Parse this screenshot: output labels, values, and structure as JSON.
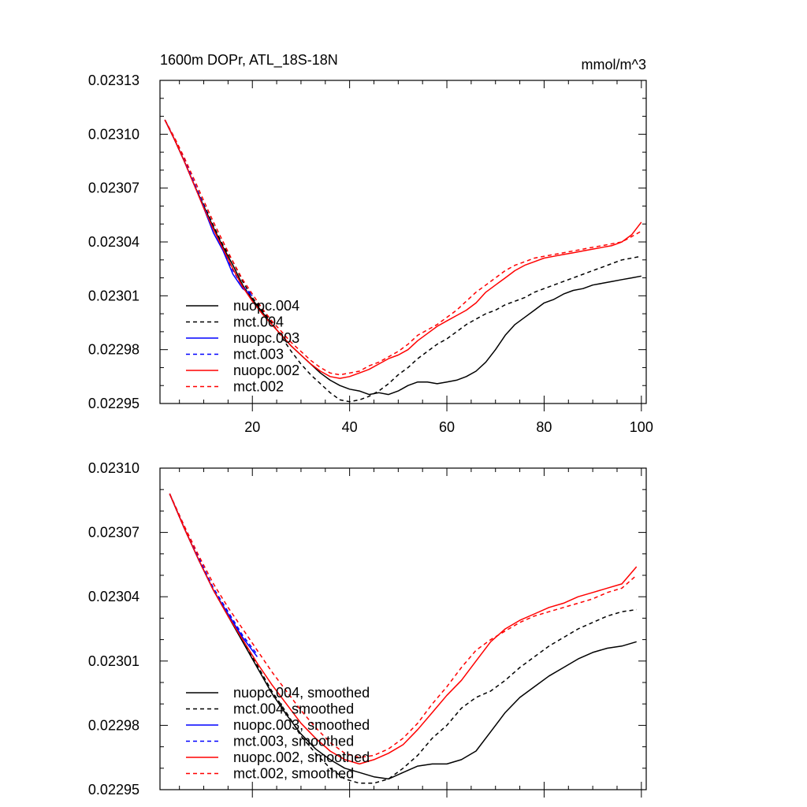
{
  "figure": {
    "title": "1600m DOPr, ATL_18S-18N",
    "units": "mmol/m^3"
  },
  "colors": {
    "nuopc_004": "#000000",
    "mct_004": "#000000",
    "nuopc_003": "#0000ff",
    "mct_003": "#0000ff",
    "nuopc_002": "#ff0000",
    "mct_002": "#ff0000"
  },
  "chart_data": [
    {
      "type": "line",
      "title": "1600m DOPr, ATL_18S-18N",
      "units": "mmol/m^3",
      "xlim": [
        1,
        101
      ],
      "ylim": [
        0.02295,
        0.02313
      ],
      "x_ticks": [
        20,
        40,
        60,
        80,
        100
      ],
      "x_tick_labels": [
        "20",
        "40",
        "60",
        "80",
        "100"
      ],
      "y_ticks": [
        0.02295,
        0.02298,
        0.02301,
        0.02304,
        0.02307,
        0.0231,
        0.02313
      ],
      "y_tick_labels": [
        "0.02295",
        "0.02298",
        "0.02301",
        "0.02304",
        "0.02307",
        "0.02310",
        "0.02313"
      ],
      "legend": "bottom-left",
      "series": [
        {
          "name": "nuopc.004",
          "style": "solid",
          "color": "#000000",
          "x": [
            2,
            4,
            6,
            8,
            10,
            12,
            14,
            16,
            18,
            20,
            22,
            24,
            26,
            28,
            30,
            32,
            34,
            36,
            38,
            40,
            42,
            44,
            46,
            48,
            50,
            52,
            54,
            56,
            58,
            60,
            62,
            64,
            66,
            68,
            70,
            72,
            74,
            76,
            78,
            80,
            82,
            84,
            86,
            88,
            90,
            92,
            94,
            96,
            98,
            100
          ],
          "y": [
            0.023108,
            0.023097,
            0.023085,
            0.023072,
            0.02306,
            0.023048,
            0.023037,
            0.023027,
            0.023016,
            0.023008,
            0.023001,
            0.022994,
            0.022988,
            0.022982,
            0.022977,
            0.022972,
            0.022967,
            0.022963,
            0.02296,
            0.022958,
            0.022957,
            0.022955,
            0.022956,
            0.022955,
            0.022957,
            0.02296,
            0.022962,
            0.022962,
            0.022961,
            0.022962,
            0.022963,
            0.022965,
            0.022968,
            0.022973,
            0.02298,
            0.022988,
            0.022994,
            0.022998,
            0.023002,
            0.023006,
            0.023008,
            0.023011,
            0.023013,
            0.023014,
            0.023016,
            0.023017,
            0.023018,
            0.023019,
            0.02302,
            0.023021
          ]
        },
        {
          "name": "mct.004",
          "style": "dashed",
          "color": "#000000",
          "x": [
            2,
            4,
            6,
            8,
            10,
            12,
            14,
            16,
            18,
            20,
            22,
            24,
            26,
            28,
            30,
            32,
            34,
            36,
            38,
            40,
            42,
            44,
            46,
            48,
            50,
            52,
            54,
            56,
            58,
            60,
            62,
            64,
            66,
            68,
            70,
            72,
            74,
            76,
            78,
            80,
            82,
            84,
            86,
            88,
            90,
            92,
            94,
            96,
            98,
            100
          ],
          "y": [
            0.023108,
            0.023097,
            0.023085,
            0.023073,
            0.023061,
            0.023049,
            0.023038,
            0.023029,
            0.023018,
            0.023009,
            0.023002,
            0.022995,
            0.022987,
            0.022979,
            0.022972,
            0.022966,
            0.022961,
            0.022956,
            0.022952,
            0.022951,
            0.022952,
            0.022954,
            0.022957,
            0.022961,
            0.022966,
            0.02297,
            0.022975,
            0.022979,
            0.022983,
            0.022986,
            0.02299,
            0.022994,
            0.022997,
            0.023,
            0.023002,
            0.023005,
            0.023007,
            0.023009,
            0.023012,
            0.023014,
            0.023016,
            0.023018,
            0.02302,
            0.023022,
            0.023024,
            0.023026,
            0.023028,
            0.02303,
            0.023031,
            0.023032
          ]
        },
        {
          "name": "nuopc.003",
          "style": "solid",
          "color": "#0000ff",
          "x": [
            2,
            4,
            6,
            8,
            10,
            12,
            14,
            16,
            18,
            20
          ],
          "y": [
            0.023108,
            0.023097,
            0.023085,
            0.023072,
            0.023059,
            0.023045,
            0.023035,
            0.023022,
            0.023014,
            0.02301
          ]
        },
        {
          "name": "mct.003",
          "style": "dashed",
          "color": "#0000ff",
          "x": [
            2,
            4,
            6,
            8,
            10,
            12,
            14,
            16,
            18,
            20
          ],
          "y": [
            0.023108,
            0.023098,
            0.023086,
            0.023073,
            0.02306,
            0.023047,
            0.023036,
            0.023024,
            0.023015,
            0.023011
          ]
        },
        {
          "name": "nuopc.002",
          "style": "solid",
          "color": "#ff0000",
          "x": [
            2,
            4,
            6,
            8,
            10,
            12,
            14,
            16,
            18,
            20,
            22,
            24,
            26,
            28,
            30,
            32,
            34,
            36,
            38,
            40,
            42,
            44,
            46,
            48,
            50,
            52,
            54,
            56,
            58,
            60,
            62,
            64,
            66,
            68,
            70,
            72,
            74,
            76,
            78,
            80,
            82,
            84,
            86,
            88,
            90,
            92,
            94,
            96,
            98,
            100
          ],
          "y": [
            0.023108,
            0.023097,
            0.023085,
            0.023072,
            0.023059,
            0.023047,
            0.023036,
            0.023025,
            0.023015,
            0.023007,
            0.023,
            0.022994,
            0.022988,
            0.022982,
            0.022977,
            0.022972,
            0.022968,
            0.022965,
            0.022964,
            0.022965,
            0.022967,
            0.022969,
            0.022972,
            0.022975,
            0.022977,
            0.02298,
            0.022985,
            0.022989,
            0.022993,
            0.022996,
            0.022999,
            0.023002,
            0.023006,
            0.023012,
            0.023016,
            0.02302,
            0.023024,
            0.023027,
            0.023029,
            0.023031,
            0.023032,
            0.023033,
            0.023034,
            0.023035,
            0.023036,
            0.023037,
            0.023038,
            0.02304,
            0.023044,
            0.023051
          ]
        },
        {
          "name": "mct.002",
          "style": "dashed",
          "color": "#ff0000",
          "x": [
            2,
            4,
            6,
            8,
            10,
            12,
            14,
            16,
            18,
            20,
            22,
            24,
            26,
            28,
            30,
            32,
            34,
            36,
            38,
            40,
            42,
            44,
            46,
            48,
            50,
            52,
            54,
            56,
            58,
            60,
            62,
            64,
            66,
            68,
            70,
            72,
            74,
            76,
            78,
            80,
            82,
            84,
            86,
            88,
            90,
            92,
            94,
            96,
            98,
            100
          ],
          "y": [
            0.023108,
            0.023098,
            0.023087,
            0.023075,
            0.023063,
            0.023051,
            0.02304,
            0.023029,
            0.023019,
            0.023011,
            0.023003,
            0.022996,
            0.02299,
            0.022984,
            0.022979,
            0.022974,
            0.02297,
            0.022967,
            0.022966,
            0.022967,
            0.022968,
            0.022971,
            0.022973,
            0.022976,
            0.022979,
            0.022983,
            0.022988,
            0.022991,
            0.022994,
            0.022998,
            0.023002,
            0.023007,
            0.023012,
            0.023016,
            0.02302,
            0.023024,
            0.023027,
            0.023029,
            0.023031,
            0.023032,
            0.023033,
            0.023034,
            0.023035,
            0.023036,
            0.023037,
            0.023038,
            0.023039,
            0.02304,
            0.023043,
            0.023046
          ]
        }
      ]
    },
    {
      "type": "line",
      "xlim": [
        1,
        101
      ],
      "ylim": [
        0.02295,
        0.0231
      ],
      "x_ticks": [
        20,
        40,
        60,
        80,
        100
      ],
      "x_tick_labels": [],
      "y_ticks": [
        0.02295,
        0.02298,
        0.02301,
        0.02304,
        0.02307,
        0.0231
      ],
      "y_tick_labels": [
        "0.02295",
        "0.02298",
        "0.02301",
        "0.02304",
        "0.02307",
        "0.02310"
      ],
      "legend": "bottom-left",
      "series": [
        {
          "name": "nuopc.004, smoothed",
          "style": "solid",
          "color": "#000000",
          "x": [
            3,
            6,
            9,
            12,
            15,
            18,
            21,
            24,
            27,
            30,
            33,
            36,
            39,
            42,
            45,
            48,
            51,
            54,
            57,
            60,
            63,
            66,
            69,
            72,
            75,
            78,
            81,
            84,
            87,
            90,
            93,
            96,
            99
          ],
          "y": [
            0.023088,
            0.023072,
            0.023057,
            0.023043,
            0.023031,
            0.023019,
            0.023007,
            0.022995,
            0.022985,
            0.022976,
            0.022969,
            0.022964,
            0.02296,
            0.022958,
            0.022956,
            0.022955,
            0.022958,
            0.022961,
            0.022962,
            0.022962,
            0.022964,
            0.022968,
            0.022977,
            0.022986,
            0.022993,
            0.022998,
            0.023003,
            0.023007,
            0.023011,
            0.023014,
            0.023016,
            0.023017,
            0.023019
          ]
        },
        {
          "name": "mct.004, smoothed",
          "style": "dashed",
          "color": "#000000",
          "x": [
            3,
            6,
            9,
            12,
            15,
            18,
            21,
            24,
            27,
            30,
            33,
            36,
            39,
            42,
            45,
            48,
            51,
            54,
            57,
            60,
            63,
            66,
            69,
            72,
            75,
            78,
            81,
            84,
            87,
            90,
            93,
            96,
            99
          ],
          "y": [
            0.023088,
            0.023072,
            0.023057,
            0.023043,
            0.023031,
            0.02302,
            0.023008,
            0.022996,
            0.022986,
            0.022975,
            0.022967,
            0.02296,
            0.022955,
            0.022953,
            0.022953,
            0.022955,
            0.02296,
            0.022966,
            0.022974,
            0.02298,
            0.022988,
            0.022993,
            0.022996,
            0.023001,
            0.023007,
            0.023012,
            0.023017,
            0.023021,
            0.023025,
            0.023028,
            0.023031,
            0.023033,
            0.023034
          ]
        },
        {
          "name": "nuopc.003, smoothed",
          "style": "solid",
          "color": "#0000ff",
          "x": [
            3,
            6,
            9,
            12,
            15,
            18,
            21
          ],
          "y": [
            0.023088,
            0.023072,
            0.023057,
            0.023043,
            0.023032,
            0.023021,
            0.023012
          ]
        },
        {
          "name": "mct.003, smoothed",
          "style": "dashed",
          "color": "#0000ff",
          "x": [
            3,
            6,
            9,
            12,
            15,
            18,
            21
          ],
          "y": [
            0.023088,
            0.023073,
            0.023058,
            0.023044,
            0.023033,
            0.023022,
            0.023013
          ]
        },
        {
          "name": "nuopc.002, smoothed",
          "style": "solid",
          "color": "#ff0000",
          "x": [
            3,
            6,
            9,
            12,
            15,
            18,
            21,
            24,
            27,
            30,
            33,
            36,
            39,
            42,
            45,
            48,
            51,
            54,
            57,
            60,
            63,
            66,
            69,
            72,
            75,
            78,
            81,
            84,
            87,
            90,
            93,
            96,
            99
          ],
          "y": [
            0.023088,
            0.023072,
            0.023057,
            0.023043,
            0.023031,
            0.02302,
            0.023009,
            0.022999,
            0.02299,
            0.022981,
            0.022974,
            0.022968,
            0.022964,
            0.022962,
            0.022964,
            0.022967,
            0.022971,
            0.022978,
            0.022986,
            0.022994,
            0.023001,
            0.02301,
            0.023019,
            0.023025,
            0.023029,
            0.023032,
            0.023035,
            0.023037,
            0.02304,
            0.023042,
            0.023044,
            0.023046,
            0.023054
          ]
        },
        {
          "name": "mct.002, smoothed",
          "style": "dashed",
          "color": "#ff0000",
          "x": [
            3,
            6,
            9,
            12,
            15,
            18,
            21,
            24,
            27,
            30,
            33,
            36,
            39,
            42,
            45,
            48,
            51,
            54,
            57,
            60,
            63,
            66,
            69,
            72,
            75,
            78,
            81,
            84,
            87,
            90,
            93,
            96,
            99
          ],
          "y": [
            0.023088,
            0.023073,
            0.023059,
            0.023046,
            0.023035,
            0.023025,
            0.023015,
            0.023005,
            0.022996,
            0.022987,
            0.022979,
            0.022972,
            0.022967,
            0.022965,
            0.022966,
            0.022969,
            0.022974,
            0.022981,
            0.02299,
            0.022998,
            0.023007,
            0.023015,
            0.02302,
            0.023024,
            0.023028,
            0.023031,
            0.023033,
            0.023035,
            0.023037,
            0.023039,
            0.023042,
            0.023044,
            0.02305
          ]
        }
      ]
    }
  ]
}
